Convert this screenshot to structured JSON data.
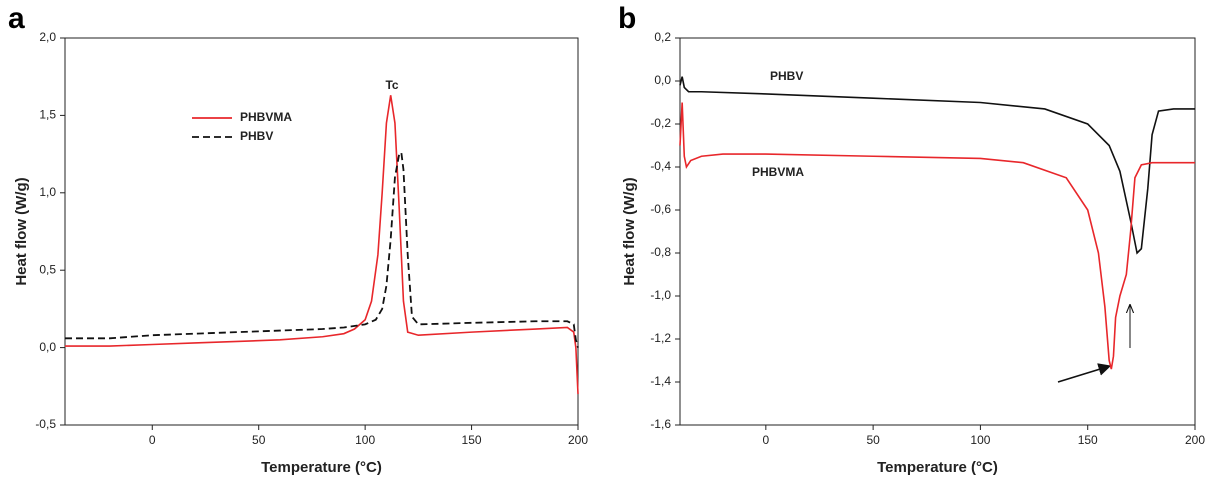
{
  "chart_data": [
    {
      "type": "line",
      "panel_label": "a",
      "x_label": "Temperature (°C)",
      "y_label": "Heat flow (W/g)",
      "xlim": [
        -41,
        200
      ],
      "xticks": [
        0,
        50,
        100,
        150,
        200
      ],
      "ylim": [
        -0.5,
        2.0
      ],
      "yticks": [
        {
          "value": -0.5,
          "label": "-0,5"
        },
        {
          "value": 0,
          "label": "0,0"
        },
        {
          "value": 0.5,
          "label": "0,5"
        },
        {
          "value": 1.0,
          "label": "1,0"
        },
        {
          "value": 1.5,
          "label": "1,5"
        },
        {
          "value": 2.0,
          "label": "2,0"
        }
      ],
      "legend": "upper left",
      "annotation": "Tc",
      "series": [
        {
          "name": "PHBVMA",
          "color": "#e8272b",
          "line_style": "solid",
          "x": [
            -41,
            -20,
            0,
            20,
            40,
            60,
            80,
            90,
            95,
            100,
            103,
            106,
            108,
            110,
            112,
            114,
            116,
            118,
            120,
            125,
            150,
            180,
            195,
            198,
            199,
            200
          ],
          "values": [
            0.01,
            0.01,
            0.02,
            0.03,
            0.04,
            0.05,
            0.07,
            0.09,
            0.12,
            0.18,
            0.3,
            0.6,
            1.0,
            1.45,
            1.63,
            1.45,
            0.9,
            0.3,
            0.1,
            0.08,
            0.1,
            0.12,
            0.13,
            0.1,
            0.0,
            -0.3
          ]
        },
        {
          "name": "PHBV",
          "color": "#111111",
          "line_style": "dashed",
          "x": [
            -41,
            -20,
            0,
            20,
            40,
            60,
            80,
            90,
            100,
            105,
            108,
            110,
            112,
            114,
            116,
            117,
            118,
            120,
            122,
            125,
            150,
            180,
            195,
            198,
            199,
            200
          ],
          "values": [
            0.06,
            0.06,
            0.08,
            0.09,
            0.1,
            0.11,
            0.12,
            0.13,
            0.15,
            0.18,
            0.25,
            0.4,
            0.7,
            1.1,
            1.25,
            1.26,
            1.15,
            0.6,
            0.2,
            0.15,
            0.16,
            0.17,
            0.17,
            0.15,
            0.05,
            0.0
          ]
        }
      ]
    },
    {
      "type": "line",
      "panel_label": "b",
      "x_label": "Temperature (°C)",
      "y_label": "Heat flow (W/g)",
      "xlim": [
        -40,
        200
      ],
      "xticks": [
        0,
        50,
        100,
        150,
        200
      ],
      "ylim": [
        -1.6,
        0.2
      ],
      "yticks": [
        {
          "value": -1.6,
          "label": "-1,6"
        },
        {
          "value": -1.4,
          "label": "-1,4"
        },
        {
          "value": -1.2,
          "label": "-1,2"
        },
        {
          "value": -1.0,
          "label": "-1,0"
        },
        {
          "value": -0.8,
          "label": "-0,8"
        },
        {
          "value": -0.6,
          "label": "-0,6"
        },
        {
          "value": -0.4,
          "label": "-0,4"
        },
        {
          "value": -0.2,
          "label": "-0,2"
        },
        {
          "value": 0,
          "label": "0,0"
        },
        {
          "value": 0.2,
          "label": "0,2"
        }
      ],
      "legend": "inline",
      "series": [
        {
          "name": "PHBV",
          "color": "#111111",
          "line_style": "solid",
          "x": [
            -40,
            -39,
            -38,
            -36,
            -30,
            0,
            50,
            100,
            130,
            150,
            160,
            165,
            170,
            173,
            175,
            178,
            180,
            183,
            190,
            200
          ],
          "values": [
            -0.02,
            0.02,
            -0.03,
            -0.05,
            -0.05,
            -0.06,
            -0.08,
            -0.1,
            -0.13,
            -0.2,
            -0.3,
            -0.42,
            -0.65,
            -0.8,
            -0.78,
            -0.5,
            -0.25,
            -0.14,
            -0.13,
            -0.13
          ]
        },
        {
          "name": "PHBVMA",
          "color": "#e8272b",
          "line_style": "solid",
          "x": [
            -40,
            -39,
            -38,
            -37,
            -35,
            -30,
            -20,
            0,
            50,
            100,
            120,
            140,
            150,
            155,
            158,
            160,
            161,
            162,
            163,
            165,
            168,
            170,
            172,
            175,
            180,
            200
          ],
          "values": [
            -0.3,
            -0.1,
            -0.35,
            -0.4,
            -0.37,
            -0.35,
            -0.34,
            -0.34,
            -0.35,
            -0.36,
            -0.38,
            -0.45,
            -0.6,
            -0.8,
            -1.05,
            -1.3,
            -1.34,
            -1.28,
            -1.1,
            -1.0,
            -0.9,
            -0.7,
            -0.45,
            -0.39,
            -0.38,
            -0.38
          ]
        }
      ]
    }
  ]
}
